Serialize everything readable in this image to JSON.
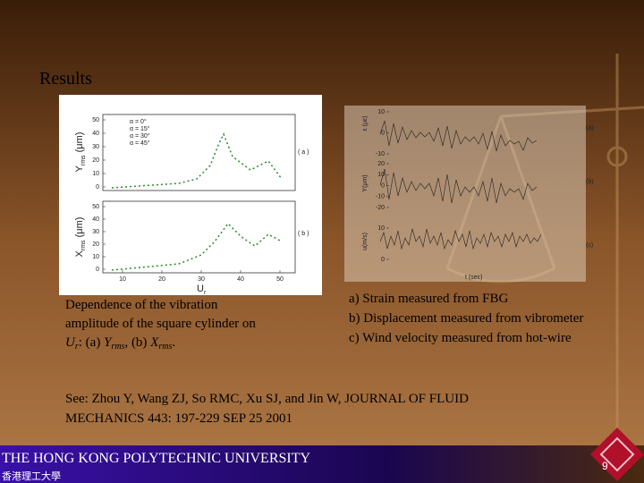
{
  "title": "Results",
  "left_figure": {
    "panel_a": {
      "y_label": [
        "Y",
        "rms",
        " (μm)"
      ],
      "tag": "( a )",
      "yticks": [
        0,
        10,
        20,
        30,
        40,
        50
      ],
      "legend": [
        "α = 0°",
        "α = 15°",
        "α = 30°",
        "α = 45°"
      ]
    },
    "panel_b": {
      "y_label": [
        "X",
        "rms",
        " (μm)"
      ],
      "tag": "( b )",
      "yticks": [
        0,
        10,
        20,
        30,
        40,
        50
      ]
    },
    "xticks": [
      10,
      20,
      30,
      40,
      50
    ],
    "x_label": [
      "U",
      "r"
    ]
  },
  "right_figure": {
    "panel_a": {
      "y_label": "ε (με)",
      "tag": "(a)",
      "yticks": [
        10,
        0,
        -10
      ]
    },
    "panel_b": {
      "y_label": "Y(μm)",
      "tag": "(b)",
      "yticks": [
        20,
        10,
        0,
        -10,
        -20
      ]
    },
    "panel_c": {
      "y_label": "u(m/s)",
      "tag": "(c)",
      "yticks": [
        10,
        0
      ]
    },
    "x_label": "t (sec)"
  },
  "left_caption": {
    "line1": "Dependence of the vibration",
    "line2": "amplitude of the square cylinder on",
    "line3": [
      "U",
      "r",
      ": (a) ",
      "Y",
      "rms",
      ", (b) ",
      "X",
      "rms",
      "."
    ]
  },
  "right_caption": [
    "a) Strain measured from FBG",
    "b) Displacement measured from vibrometer",
    "c) Wind velocity measured from hot-wire"
  ],
  "citation": [
    "See: Zhou Y, Wang ZJ, So RMC, Xu SJ, and Jin W, JOURNAL OF FLUID",
    "MECHANICS 443: 197-229 SEP 25 2001"
  ],
  "footer": {
    "university": "THE HONG KONG POLYTECHNIC UNIVERSITY",
    "chinese": "香港理工大學",
    "page": "9"
  }
}
